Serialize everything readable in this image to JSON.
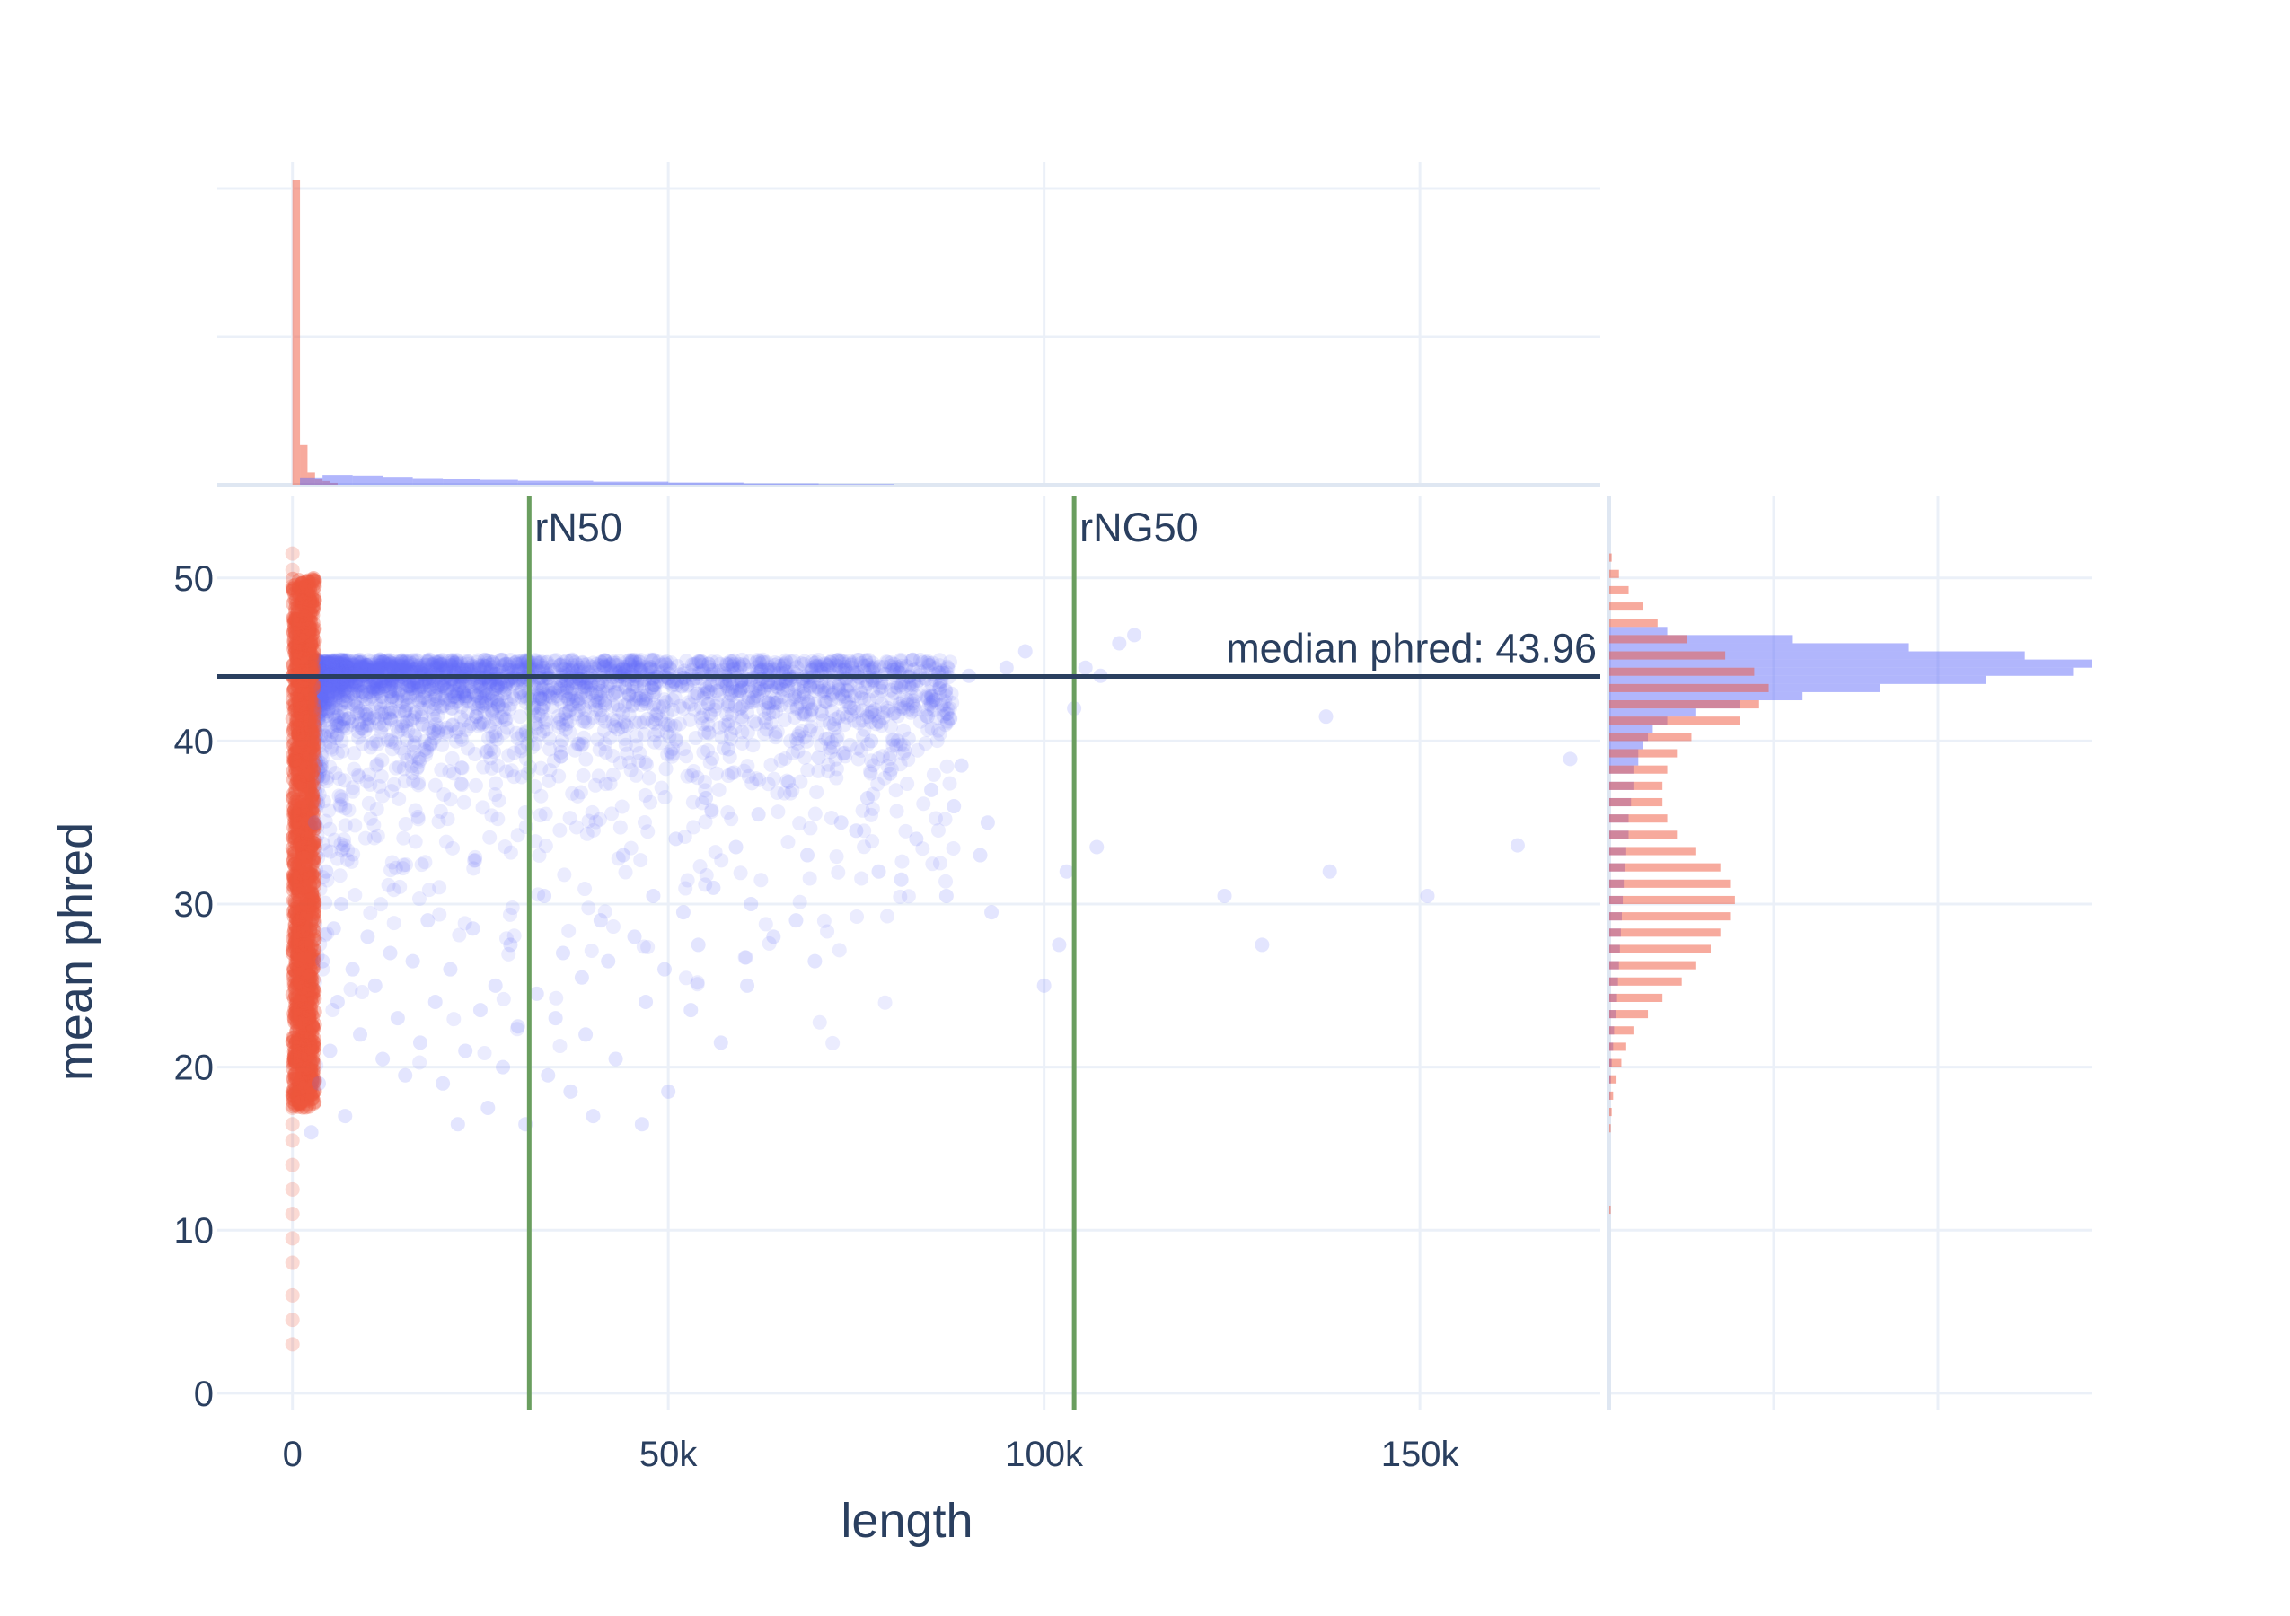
{
  "colors": {
    "long_reads": "#636efa",
    "short_reads": "#ef553b",
    "n50_line": "#6a9e5f",
    "median_line": "#2a3f5f",
    "grid": "#ebf0f8",
    "text": "#2a3f5f"
  },
  "chart_data": {
    "type": "scatter",
    "xlabel": "length",
    "ylabel": "mean phred",
    "xlim": [
      -10000,
      174000
    ],
    "ylim": [
      -1,
      55
    ],
    "x_ticks": [
      {
        "value": 0,
        "label": "0"
      },
      {
        "value": 50000,
        "label": "50k"
      },
      {
        "value": 100000,
        "label": "100k"
      },
      {
        "value": 150000,
        "label": "150k"
      }
    ],
    "y_ticks": [
      {
        "value": 0,
        "label": "0"
      },
      {
        "value": 10,
        "label": "10"
      },
      {
        "value": 20,
        "label": "20"
      },
      {
        "value": 30,
        "label": "30"
      },
      {
        "value": 40,
        "label": "40"
      },
      {
        "value": 50,
        "label": "50"
      }
    ],
    "vertical_lines": [
      {
        "x": 31500,
        "label": "rN50"
      },
      {
        "x": 104000,
        "label": "rNG50"
      }
    ],
    "horizontal_line": {
      "y": 43.96,
      "label": "median phred: 43.96"
    },
    "series": [
      {
        "color": "#636efa",
        "points": [
          [
            170000,
            38.9
          ],
          [
            163000,
            33.6
          ],
          [
            151000,
            30.5
          ],
          [
            138000,
            32.0
          ],
          [
            137500,
            41.5
          ],
          [
            129000,
            27.5
          ],
          [
            124000,
            30.5
          ],
          [
            112000,
            46.5
          ],
          [
            110000,
            46.0
          ],
          [
            107500,
            44.0
          ],
          [
            107000,
            33.5
          ],
          [
            105500,
            44.5
          ],
          [
            104000,
            42.0
          ],
          [
            103000,
            32.0
          ],
          [
            102000,
            27.5
          ],
          [
            100000,
            25.0
          ],
          [
            97500,
            45.5
          ],
          [
            95000,
            44.5
          ],
          [
            93000,
            29.5
          ],
          [
            92500,
            35.0
          ],
          [
            91500,
            33.0
          ],
          [
            90000,
            44.0
          ],
          [
            89000,
            38.5
          ],
          [
            88000,
            36.0
          ],
          [
            87000,
            30.5
          ],
          [
            85000,
            37.0
          ],
          [
            84500,
            41.5
          ],
          [
            83000,
            34.0
          ],
          [
            81000,
            31.5
          ],
          [
            79500,
            38.0
          ],
          [
            78000,
            32.0
          ],
          [
            77000,
            40.0
          ],
          [
            76500,
            36.5
          ],
          [
            75000,
            34.5
          ],
          [
            73000,
            35.0
          ],
          [
            72000,
            41.0
          ],
          [
            70000,
            39.0
          ],
          [
            69500,
            26.5
          ],
          [
            68500,
            33.0
          ],
          [
            67000,
            29.0
          ],
          [
            66000,
            37.5
          ],
          [
            64000,
            28.0
          ],
          [
            62000,
            35.5
          ],
          [
            61000,
            30.0
          ],
          [
            60500,
            25.0
          ],
          [
            59000,
            33.5
          ],
          [
            58000,
            39.5
          ],
          [
            57000,
            21.5
          ],
          [
            56000,
            31.0
          ],
          [
            55000,
            36.5
          ],
          [
            54000,
            27.5
          ],
          [
            53000,
            23.5
          ],
          [
            52000,
            29.5
          ],
          [
            51000,
            34.0
          ],
          [
            50000,
            18.5
          ],
          [
            49500,
            26.0
          ],
          [
            48000,
            30.5
          ],
          [
            47000,
            24.0
          ],
          [
            46500,
            16.5
          ],
          [
            45500,
            28.0
          ],
          [
            44000,
            33.0
          ],
          [
            43000,
            20.5
          ],
          [
            42000,
            26.5
          ],
          [
            41000,
            29.0
          ],
          [
            40000,
            17.0
          ],
          [
            39000,
            22.0
          ],
          [
            38500,
            25.5
          ],
          [
            37000,
            18.5
          ],
          [
            36000,
            27.0
          ],
          [
            35000,
            23.0
          ],
          [
            34000,
            19.5
          ],
          [
            33500,
            30.5
          ],
          [
            32500,
            24.5
          ],
          [
            31000,
            16.5
          ],
          [
            30000,
            22.5
          ],
          [
            29000,
            27.5
          ],
          [
            28000,
            20.0
          ],
          [
            27000,
            25.0
          ],
          [
            26000,
            17.5
          ],
          [
            25000,
            23.5
          ],
          [
            24000,
            28.5
          ],
          [
            23000,
            21.0
          ],
          [
            22000,
            16.5
          ],
          [
            21000,
            26.0
          ],
          [
            20000,
            19.0
          ],
          [
            19000,
            24.0
          ],
          [
            18000,
            29.0
          ],
          [
            17000,
            21.5
          ],
          [
            16000,
            26.5
          ],
          [
            15000,
            19.5
          ],
          [
            14000,
            23.0
          ],
          [
            13000,
            27.0
          ],
          [
            12000,
            20.5
          ],
          [
            11000,
            25.0
          ],
          [
            10000,
            28.0
          ],
          [
            9000,
            22.0
          ],
          [
            8000,
            26.0
          ],
          [
            7000,
            17.0
          ],
          [
            6500,
            30.0
          ],
          [
            6000,
            24.0
          ],
          [
            5500,
            28.5
          ],
          [
            5000,
            21.0
          ],
          [
            4500,
            32.0
          ],
          [
            4000,
            26.5
          ],
          [
            3500,
            19.0
          ],
          [
            3000,
            35.0
          ],
          [
            2500,
            16.0
          ]
        ]
      },
      {
        "color": "#ef553b",
        "points": [
          [
            0,
            3.0
          ],
          [
            0,
            4.5
          ],
          [
            0,
            6.0
          ],
          [
            0,
            8.0
          ],
          [
            0,
            9.5
          ],
          [
            0,
            11.0
          ],
          [
            0,
            12.5
          ],
          [
            0,
            14.0
          ],
          [
            0,
            15.5
          ],
          [
            0,
            16.5
          ],
          [
            0,
            17.5
          ],
          [
            0,
            18.5
          ],
          [
            0,
            51.5
          ],
          [
            0,
            50.5
          ],
          [
            0,
            49.5
          ]
        ]
      }
    ],
    "length_histogram": {
      "series": [
        {
          "color": "#ef553b",
          "bins": [
            0,
            1000,
            2000,
            3000,
            4000,
            5000
          ],
          "values": [
            100,
            13.0,
            4.0,
            2.0,
            1.2,
            0.6
          ]
        },
        {
          "color": "#636efa",
          "bins": [
            1000,
            4000,
            8000,
            12000,
            16000,
            20000,
            25000,
            30000,
            40000,
            50000,
            60000,
            70000,
            80000
          ],
          "values": [
            2.4,
            3.2,
            3.0,
            2.6,
            2.2,
            1.9,
            1.6,
            1.3,
            1.0,
            0.7,
            0.4,
            0.2
          ]
        }
      ]
    },
    "phred_histogram": {
      "series": [
        {
          "color": "#636efa",
          "bins": [
            46.5,
            46.0,
            45.5,
            45.0,
            44.5,
            44.0,
            43.5,
            43.0,
            42.5,
            42.0,
            41.5,
            41.0,
            40.5,
            40.0,
            39.5,
            39.0,
            38.5,
            38.0,
            37.0,
            36.0,
            35.0,
            34.0,
            33.0,
            32.0,
            31.0,
            30.0,
            29.0,
            28.0,
            27.0,
            26.0,
            25.0,
            24.0,
            23.0,
            22.0,
            21.0,
            20.0,
            19.0,
            18.0
          ],
          "values": [
            12,
            38,
            62,
            86,
            100,
            96,
            78,
            56,
            40,
            27,
            18,
            12,
            9,
            8,
            7,
            6,
            6,
            5,
            5,
            4.5,
            4,
            4,
            3.5,
            3.2,
            3.0,
            2.8,
            2.6,
            2.4,
            2.2,
            2.0,
            1.8,
            1.6,
            1.3,
            1.0,
            0.8,
            0.5,
            0.3,
            0.1
          ]
        },
        {
          "color": "#ef553b",
          "bins": [
            51.0,
            50.0,
            49.0,
            48.0,
            47.0,
            46.0,
            45.0,
            44.0,
            43.0,
            42.0,
            41.0,
            40.0,
            39.0,
            38.0,
            37.0,
            36.0,
            35.0,
            34.0,
            33.0,
            32.0,
            31.0,
            30.0,
            29.0,
            28.0,
            27.0,
            26.0,
            25.0,
            24.0,
            23.0,
            22.0,
            21.0,
            20.0,
            19.0,
            18.0,
            17.0,
            16.0,
            11.0
          ],
          "values": [
            0.5,
            2,
            4,
            7,
            10,
            16,
            24,
            30,
            33,
            31,
            27,
            17,
            14,
            12,
            11,
            11,
            12,
            14,
            18,
            23,
            25,
            26,
            25,
            23,
            21,
            18,
            15,
            11,
            8,
            5,
            3.5,
            2.5,
            1.5,
            0.8,
            0.5,
            0.3,
            0.3
          ]
        }
      ]
    }
  }
}
